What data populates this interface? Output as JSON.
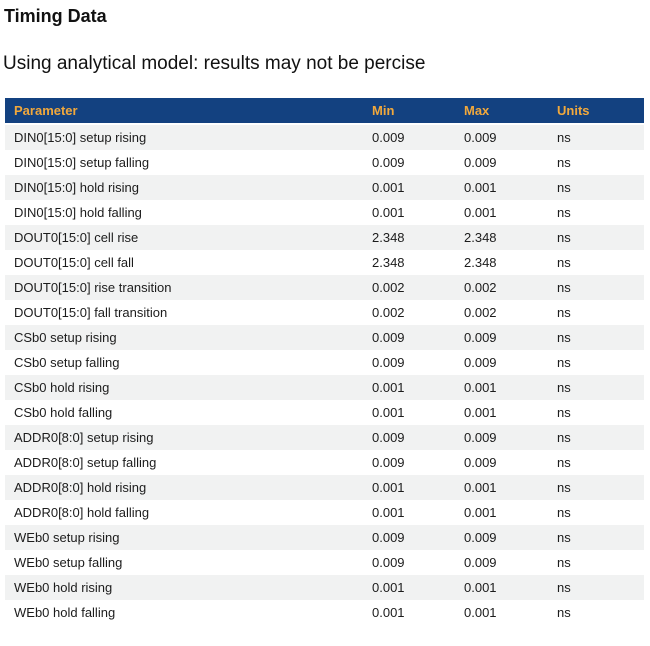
{
  "page": {
    "title": "Timing Data",
    "subtitle": "Using analytical model: results may not be percise"
  },
  "colors": {
    "header_bg": "#134180",
    "header_text": "#f1a83c",
    "stripe_bg": "#f1f2f2",
    "body_text": "#1c1c1c"
  },
  "table": {
    "columns": [
      "Parameter",
      "Min",
      "Max",
      "Units"
    ],
    "rows": [
      {
        "parameter": "DIN0[15:0] setup rising",
        "min": "0.009",
        "max": "0.009",
        "units": "ns"
      },
      {
        "parameter": "DIN0[15:0] setup falling",
        "min": "0.009",
        "max": "0.009",
        "units": "ns"
      },
      {
        "parameter": "DIN0[15:0] hold rising",
        "min": "0.001",
        "max": "0.001",
        "units": "ns"
      },
      {
        "parameter": "DIN0[15:0] hold falling",
        "min": "0.001",
        "max": "0.001",
        "units": "ns"
      },
      {
        "parameter": "DOUT0[15:0] cell rise",
        "min": "2.348",
        "max": "2.348",
        "units": "ns"
      },
      {
        "parameter": "DOUT0[15:0] cell fall",
        "min": "2.348",
        "max": "2.348",
        "units": "ns"
      },
      {
        "parameter": "DOUT0[15:0] rise transition",
        "min": "0.002",
        "max": "0.002",
        "units": "ns"
      },
      {
        "parameter": "DOUT0[15:0] fall transition",
        "min": "0.002",
        "max": "0.002",
        "units": "ns"
      },
      {
        "parameter": "CSb0 setup rising",
        "min": "0.009",
        "max": "0.009",
        "units": "ns"
      },
      {
        "parameter": "CSb0 setup falling",
        "min": "0.009",
        "max": "0.009",
        "units": "ns"
      },
      {
        "parameter": "CSb0 hold rising",
        "min": "0.001",
        "max": "0.001",
        "units": "ns"
      },
      {
        "parameter": "CSb0 hold falling",
        "min": "0.001",
        "max": "0.001",
        "units": "ns"
      },
      {
        "parameter": "ADDR0[8:0] setup rising",
        "min": "0.009",
        "max": "0.009",
        "units": "ns"
      },
      {
        "parameter": "ADDR0[8:0] setup falling",
        "min": "0.009",
        "max": "0.009",
        "units": "ns"
      },
      {
        "parameter": "ADDR0[8:0] hold rising",
        "min": "0.001",
        "max": "0.001",
        "units": "ns"
      },
      {
        "parameter": "ADDR0[8:0] hold falling",
        "min": "0.001",
        "max": "0.001",
        "units": "ns"
      },
      {
        "parameter": "WEb0 setup rising",
        "min": "0.009",
        "max": "0.009",
        "units": "ns"
      },
      {
        "parameter": "WEb0 setup falling",
        "min": "0.009",
        "max": "0.009",
        "units": "ns"
      },
      {
        "parameter": "WEb0 hold rising",
        "min": "0.001",
        "max": "0.001",
        "units": "ns"
      },
      {
        "parameter": "WEb0 hold falling",
        "min": "0.001",
        "max": "0.001",
        "units": "ns"
      }
    ]
  }
}
